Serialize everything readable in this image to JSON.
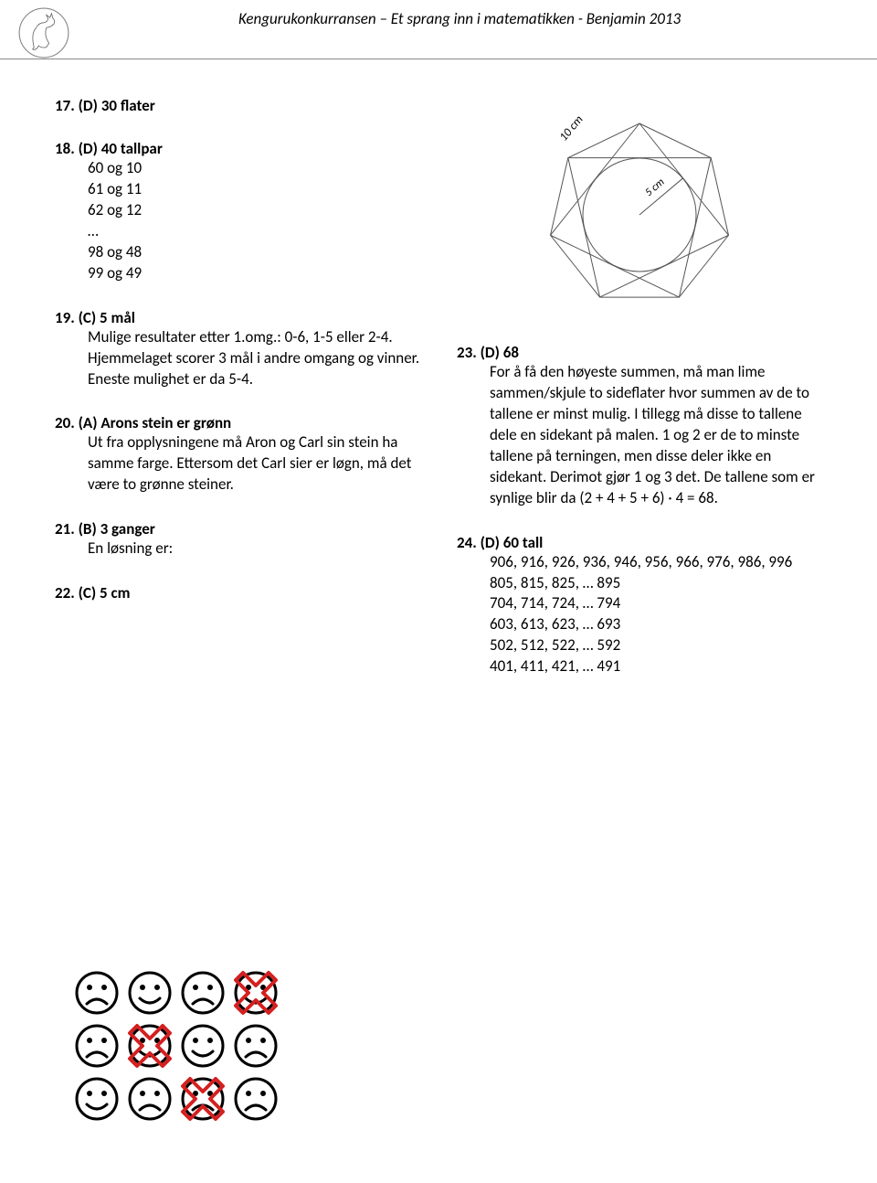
{
  "header": {
    "title": "Kengurukonkurransen – Et sprang inn i matematikken - Benjamin 2013"
  },
  "left": {
    "q17": {
      "head": "17. (D) 30 flater"
    },
    "q18": {
      "head": "18. (D) 40 tallpar",
      "lines": [
        "60 og 10",
        "61 og 11",
        "62 og 12",
        "…",
        "98 og 48",
        "99 og 49"
      ]
    },
    "q19": {
      "head": "19. (C) 5 mål",
      "body": "Mulige resultater etter 1.omg.: 0-6, 1-5 eller 2-4. Hjemmelaget scorer 3 mål i andre omgang og vinner. Eneste mulighet er da 5-4."
    },
    "q20": {
      "head": "20. (A) Arons stein er grønn",
      "body": "Ut fra opplysningene må Aron og Carl sin stein ha samme farge. Ettersom det Carl sier er løgn, må det være to grønne steiner."
    },
    "q21": {
      "head": "21. (B) 3 ganger",
      "body": "En løsning er:"
    },
    "q22": {
      "head": "22. (C) 5 cm"
    }
  },
  "right": {
    "diagram": {
      "labels": {
        "outer": "10 cm",
        "inner": "5 cm"
      },
      "stroke": "#555555"
    },
    "q23": {
      "head": "23. (D) 68",
      "body": "For å få den høyeste summen, må man lime sammen/skjule to sideflater hvor summen av de to tallene er minst mulig. I tillegg må disse to tallene dele en sidekant på malen. 1 og 2 er de to minste tallene på terningen, men disse deler ikke en sidekant. Derimot gjør 1 og 3 det. De tallene som er synlige blir da (2 + 4 + 5 + 6) · 4 = 68."
    },
    "q24": {
      "head": "24. (D) 60 tall",
      "lines": [
        "906, 916, 926, 936, 946, 956, 966, 976, 986, 996",
        "805, 815, 825, … 895",
        "704, 714, 724, … 794",
        "603, 613, 623, … 693",
        "502, 512, 522, … 592",
        "401, 411, 421, … 491"
      ]
    }
  },
  "faces": {
    "grid": [
      [
        "sad",
        "happy",
        "sad",
        "happy"
      ],
      [
        "sad",
        "happy",
        "happy",
        "sad"
      ],
      [
        "happy",
        "sad",
        "sad",
        "sad"
      ]
    ],
    "crossed": [
      [
        0,
        3
      ],
      [
        1,
        1
      ],
      [
        2,
        2
      ]
    ],
    "cross_color": "#d42020",
    "face_stroke": "#000000"
  }
}
